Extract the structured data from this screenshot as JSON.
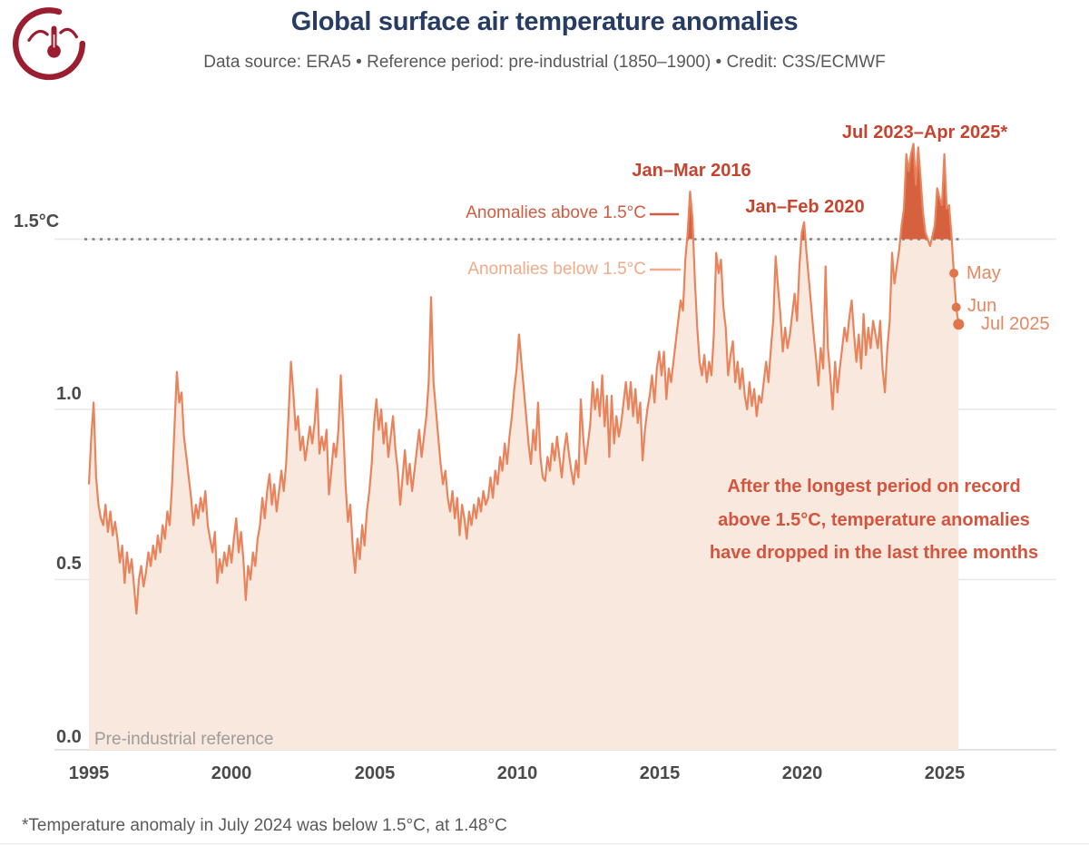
{
  "header": {
    "title": "Global surface air temperature anomalies",
    "subtitle": "Data source: ERA5 • Reference period: pre-industrial (1850–1900) • Credit: C3S/ECMWF"
  },
  "logo": {
    "name": "copernicus-climate-logo",
    "color": "#9b1d30"
  },
  "y_axis": {
    "labels": [
      "1.5°C",
      "1.0",
      "0.5",
      "0.0"
    ]
  },
  "x_axis": {
    "ticks": [
      "1995",
      "2000",
      "2005",
      "2010",
      "2015",
      "2020",
      "2025"
    ]
  },
  "annotations": {
    "peak_2016": "Jan–Mar 2016",
    "peak_2020": "Jan–Feb 2020",
    "peak_2023_2025": "Jul 2023–Apr 2025*",
    "legend_above": "Anomalies above 1.5°C",
    "legend_below": "Anomalies below 1.5°C",
    "note_line1": "After the longest period on record",
    "note_line2": "above 1.5°C, temperature anomalies",
    "note_line3": "have dropped in the last three months",
    "baseline": "Pre-industrial reference"
  },
  "recent_months": [
    {
      "label": "May",
      "value": 1.4
    },
    {
      "label": "Jun",
      "value": 1.3
    },
    {
      "label": "Jul 2025",
      "value": 1.25
    }
  ],
  "footnote": "*Temperature anomaly in July 2024 was below 1.5°C, at 1.48°C",
  "chart_data": {
    "type": "area",
    "title": "Global surface air temperature anomalies",
    "unit": "°C above pre-industrial (1850–1900)",
    "frequency": "monthly",
    "x_start": "1995-01",
    "x_end": "2025-07",
    "x_ticks": [
      1995,
      2000,
      2005,
      2010,
      2015,
      2020,
      2025
    ],
    "y_ticks": [
      0.0,
      0.5,
      1.0,
      1.5
    ],
    "ylim": [
      0,
      1.85
    ],
    "threshold": 1.5,
    "grid": "horizontal-only",
    "colors": {
      "line": "#e8835c",
      "fill_below": "#f9e8de",
      "fill_above": "#d6613f",
      "threshold_dots": "#7e7e7e",
      "gridline": "#e7e7e7",
      "baseline": "#d9d9d9",
      "dot": "#e0744b",
      "leader_above": "#cf5a3e",
      "leader_below": "#f0ab8c"
    },
    "values": [
      0.78,
      0.92,
      1.02,
      0.8,
      0.72,
      0.68,
      0.66,
      0.72,
      0.64,
      0.7,
      0.63,
      0.67,
      0.62,
      0.55,
      0.6,
      0.49,
      0.58,
      0.52,
      0.56,
      0.48,
      0.4,
      0.5,
      0.54,
      0.48,
      0.52,
      0.58,
      0.54,
      0.6,
      0.56,
      0.63,
      0.58,
      0.66,
      0.62,
      0.7,
      0.66,
      0.78,
      0.95,
      1.11,
      1.02,
      1.05,
      0.92,
      0.86,
      0.8,
      0.74,
      0.66,
      0.72,
      0.68,
      0.74,
      0.7,
      0.76,
      0.66,
      0.62,
      0.58,
      0.64,
      0.49,
      0.56,
      0.52,
      0.58,
      0.54,
      0.6,
      0.55,
      0.62,
      0.68,
      0.58,
      0.64,
      0.56,
      0.44,
      0.54,
      0.5,
      0.58,
      0.54,
      0.62,
      0.66,
      0.74,
      0.68,
      0.76,
      0.81,
      0.72,
      0.78,
      0.7,
      0.76,
      0.82,
      0.76,
      0.84,
      0.98,
      1.14,
      1.05,
      0.94,
      0.98,
      0.88,
      0.92,
      0.85,
      0.9,
      0.95,
      0.9,
      0.96,
      1.06,
      0.87,
      0.92,
      0.88,
      0.94,
      0.75,
      0.82,
      0.9,
      0.86,
      0.94,
      1.1,
      0.95,
      0.78,
      0.67,
      0.72,
      0.6,
      0.52,
      0.62,
      0.56,
      0.66,
      0.6,
      0.7,
      0.76,
      0.84,
      0.96,
      1.03,
      0.94,
      1.0,
      0.9,
      0.96,
      0.86,
      0.92,
      0.98,
      0.88,
      0.82,
      0.72,
      0.8,
      0.88,
      0.78,
      0.84,
      0.76,
      0.82,
      0.88,
      0.94,
      0.86,
      0.92,
      0.98,
      1.08,
      1.33,
      1.08,
      1.0,
      0.92,
      0.84,
      0.78,
      0.82,
      0.74,
      0.7,
      0.76,
      0.68,
      0.74,
      0.63,
      0.72,
      0.68,
      0.62,
      0.7,
      0.66,
      0.72,
      0.68,
      0.74,
      0.7,
      0.76,
      0.72,
      0.74,
      0.8,
      0.74,
      0.82,
      0.78,
      0.86,
      0.82,
      0.9,
      0.84,
      0.92,
      0.98,
      1.06,
      1.12,
      1.22,
      1.14,
      1.06,
      0.98,
      0.9,
      0.84,
      0.94,
      0.88,
      1.02,
      0.86,
      0.8,
      0.79,
      0.86,
      0.82,
      0.9,
      0.85,
      0.92,
      0.86,
      0.8,
      0.88,
      0.93,
      0.87,
      0.82,
      0.78,
      0.85,
      0.8,
      1.03,
      0.92,
      0.84,
      0.9,
      0.96,
      1.08,
      1.0,
      1.06,
      0.98,
      1.1,
      0.95,
      1.04,
      0.86,
      1.04,
      0.9,
      0.98,
      0.92,
      0.96,
      1.02,
      1.08,
      1.0,
      1.08,
      0.98,
      1.06,
      0.96,
      1.02,
      0.85,
      0.94,
      1.0,
      1.04,
      1.1,
      1.02,
      1.12,
      1.17,
      1.1,
      1.17,
      1.03,
      1.12,
      1.08,
      1.14,
      1.2,
      1.26,
      1.32,
      1.29,
      1.44,
      1.52,
      1.64,
      1.56,
      1.38,
      1.24,
      1.14,
      1.1,
      1.16,
      1.08,
      1.14,
      1.1,
      1.22,
      1.46,
      1.4,
      1.44,
      1.3,
      1.24,
      1.1,
      1.16,
      1.2,
      1.08,
      1.14,
      1.06,
      1.12,
      1.04,
      1.0,
      1.08,
      1.01,
      1.06,
      0.98,
      1.04,
      1.02,
      1.08,
      1.14,
      1.08,
      1.18,
      1.26,
      1.45,
      1.36,
      1.28,
      1.17,
      1.24,
      1.18,
      1.22,
      1.28,
      1.34,
      1.26,
      1.42,
      1.52,
      1.55,
      1.46,
      1.38,
      1.3,
      1.22,
      1.15,
      1.07,
      1.18,
      1.12,
      1.42,
      1.18,
      1.1,
      1.0,
      1.14,
      1.05,
      1.12,
      1.18,
      1.24,
      1.2,
      1.27,
      1.32,
      1.22,
      1.14,
      1.22,
      1.12,
      1.28,
      1.16,
      1.24,
      1.18,
      1.26,
      1.22,
      1.18,
      1.26,
      1.12,
      1.05,
      1.18,
      1.26,
      1.46,
      1.37,
      1.42,
      1.47,
      1.54,
      1.59,
      1.75,
      1.7,
      1.75,
      1.78,
      1.66,
      1.77,
      1.68,
      1.58,
      1.52,
      1.5,
      1.48,
      1.51,
      1.54,
      1.65,
      1.62,
      1.6,
      1.75,
      1.59,
      1.6,
      1.51,
      1.4,
      1.3,
      1.25
    ]
  }
}
